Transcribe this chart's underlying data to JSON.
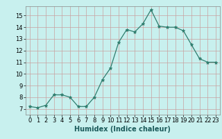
{
  "x": [
    0,
    1,
    2,
    3,
    4,
    5,
    6,
    7,
    8,
    9,
    10,
    11,
    12,
    13,
    14,
    15,
    16,
    17,
    18,
    19,
    20,
    21,
    22,
    23
  ],
  "y": [
    7.2,
    7.1,
    7.3,
    8.2,
    8.2,
    8.0,
    7.2,
    7.2,
    8.0,
    9.5,
    10.5,
    12.7,
    13.8,
    13.6,
    14.3,
    15.5,
    14.1,
    14.0,
    14.0,
    13.7,
    12.5,
    11.3,
    11.0,
    11.0
  ],
  "xlabel": "Humidex (Indice chaleur)",
  "xlim": [
    -0.5,
    23.5
  ],
  "ylim": [
    6.5,
    15.8
  ],
  "yticks": [
    7,
    8,
    9,
    10,
    11,
    12,
    13,
    14,
    15
  ],
  "xticks": [
    0,
    1,
    2,
    3,
    4,
    5,
    6,
    7,
    8,
    9,
    10,
    11,
    12,
    13,
    14,
    15,
    16,
    17,
    18,
    19,
    20,
    21,
    22,
    23
  ],
  "line_color": "#2e7d6e",
  "marker_color": "#2e7d6e",
  "bg_color": "#c8f0ee",
  "grid_color": "#c8a0a0",
  "label_fontsize": 7,
  "tick_fontsize": 6
}
